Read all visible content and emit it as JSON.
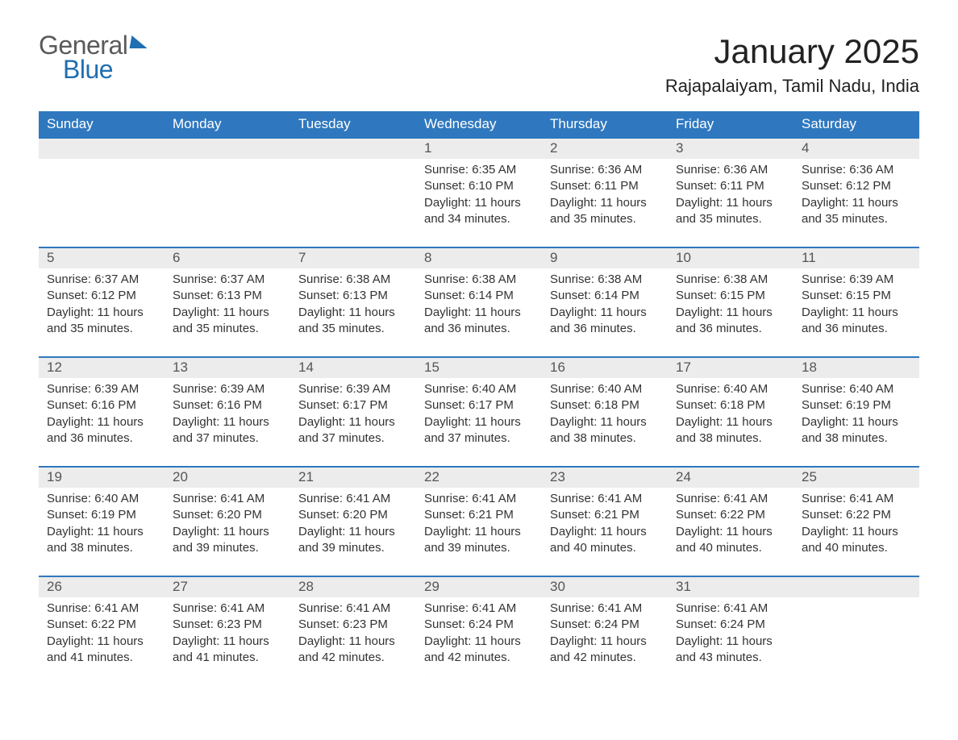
{
  "logo": {
    "line1": "General",
    "line2": "Blue"
  },
  "title": "January 2025",
  "location": "Rajapalaiyam, Tamil Nadu, India",
  "colors": {
    "header_bg": "#2f78bf",
    "header_text": "#ffffff",
    "daynum_bg": "#ececec",
    "daynum_text": "#555555",
    "body_text": "#333333",
    "rule": "#2f78bf",
    "logo_gray": "#5a5a5a",
    "logo_blue": "#1f6fb2",
    "page_bg": "#ffffff"
  },
  "typography": {
    "title_fontsize_pt": 32,
    "location_fontsize_pt": 17,
    "header_fontsize_pt": 13,
    "daynum_fontsize_pt": 13,
    "body_fontsize_pt": 11
  },
  "layout": {
    "columns": 7,
    "rows": 5,
    "start_day_index": 3
  },
  "day_names": [
    "Sunday",
    "Monday",
    "Tuesday",
    "Wednesday",
    "Thursday",
    "Friday",
    "Saturday"
  ],
  "weeks": [
    [
      null,
      null,
      null,
      {
        "n": "1",
        "sunrise": "Sunrise: 6:35 AM",
        "sunset": "Sunset: 6:10 PM",
        "d1": "Daylight: 11 hours",
        "d2": "and 34 minutes."
      },
      {
        "n": "2",
        "sunrise": "Sunrise: 6:36 AM",
        "sunset": "Sunset: 6:11 PM",
        "d1": "Daylight: 11 hours",
        "d2": "and 35 minutes."
      },
      {
        "n": "3",
        "sunrise": "Sunrise: 6:36 AM",
        "sunset": "Sunset: 6:11 PM",
        "d1": "Daylight: 11 hours",
        "d2": "and 35 minutes."
      },
      {
        "n": "4",
        "sunrise": "Sunrise: 6:36 AM",
        "sunset": "Sunset: 6:12 PM",
        "d1": "Daylight: 11 hours",
        "d2": "and 35 minutes."
      }
    ],
    [
      {
        "n": "5",
        "sunrise": "Sunrise: 6:37 AM",
        "sunset": "Sunset: 6:12 PM",
        "d1": "Daylight: 11 hours",
        "d2": "and 35 minutes."
      },
      {
        "n": "6",
        "sunrise": "Sunrise: 6:37 AM",
        "sunset": "Sunset: 6:13 PM",
        "d1": "Daylight: 11 hours",
        "d2": "and 35 minutes."
      },
      {
        "n": "7",
        "sunrise": "Sunrise: 6:38 AM",
        "sunset": "Sunset: 6:13 PM",
        "d1": "Daylight: 11 hours",
        "d2": "and 35 minutes."
      },
      {
        "n": "8",
        "sunrise": "Sunrise: 6:38 AM",
        "sunset": "Sunset: 6:14 PM",
        "d1": "Daylight: 11 hours",
        "d2": "and 36 minutes."
      },
      {
        "n": "9",
        "sunrise": "Sunrise: 6:38 AM",
        "sunset": "Sunset: 6:14 PM",
        "d1": "Daylight: 11 hours",
        "d2": "and 36 minutes."
      },
      {
        "n": "10",
        "sunrise": "Sunrise: 6:38 AM",
        "sunset": "Sunset: 6:15 PM",
        "d1": "Daylight: 11 hours",
        "d2": "and 36 minutes."
      },
      {
        "n": "11",
        "sunrise": "Sunrise: 6:39 AM",
        "sunset": "Sunset: 6:15 PM",
        "d1": "Daylight: 11 hours",
        "d2": "and 36 minutes."
      }
    ],
    [
      {
        "n": "12",
        "sunrise": "Sunrise: 6:39 AM",
        "sunset": "Sunset: 6:16 PM",
        "d1": "Daylight: 11 hours",
        "d2": "and 36 minutes."
      },
      {
        "n": "13",
        "sunrise": "Sunrise: 6:39 AM",
        "sunset": "Sunset: 6:16 PM",
        "d1": "Daylight: 11 hours",
        "d2": "and 37 minutes."
      },
      {
        "n": "14",
        "sunrise": "Sunrise: 6:39 AM",
        "sunset": "Sunset: 6:17 PM",
        "d1": "Daylight: 11 hours",
        "d2": "and 37 minutes."
      },
      {
        "n": "15",
        "sunrise": "Sunrise: 6:40 AM",
        "sunset": "Sunset: 6:17 PM",
        "d1": "Daylight: 11 hours",
        "d2": "and 37 minutes."
      },
      {
        "n": "16",
        "sunrise": "Sunrise: 6:40 AM",
        "sunset": "Sunset: 6:18 PM",
        "d1": "Daylight: 11 hours",
        "d2": "and 38 minutes."
      },
      {
        "n": "17",
        "sunrise": "Sunrise: 6:40 AM",
        "sunset": "Sunset: 6:18 PM",
        "d1": "Daylight: 11 hours",
        "d2": "and 38 minutes."
      },
      {
        "n": "18",
        "sunrise": "Sunrise: 6:40 AM",
        "sunset": "Sunset: 6:19 PM",
        "d1": "Daylight: 11 hours",
        "d2": "and 38 minutes."
      }
    ],
    [
      {
        "n": "19",
        "sunrise": "Sunrise: 6:40 AM",
        "sunset": "Sunset: 6:19 PM",
        "d1": "Daylight: 11 hours",
        "d2": "and 38 minutes."
      },
      {
        "n": "20",
        "sunrise": "Sunrise: 6:41 AM",
        "sunset": "Sunset: 6:20 PM",
        "d1": "Daylight: 11 hours",
        "d2": "and 39 minutes."
      },
      {
        "n": "21",
        "sunrise": "Sunrise: 6:41 AM",
        "sunset": "Sunset: 6:20 PM",
        "d1": "Daylight: 11 hours",
        "d2": "and 39 minutes."
      },
      {
        "n": "22",
        "sunrise": "Sunrise: 6:41 AM",
        "sunset": "Sunset: 6:21 PM",
        "d1": "Daylight: 11 hours",
        "d2": "and 39 minutes."
      },
      {
        "n": "23",
        "sunrise": "Sunrise: 6:41 AM",
        "sunset": "Sunset: 6:21 PM",
        "d1": "Daylight: 11 hours",
        "d2": "and 40 minutes."
      },
      {
        "n": "24",
        "sunrise": "Sunrise: 6:41 AM",
        "sunset": "Sunset: 6:22 PM",
        "d1": "Daylight: 11 hours",
        "d2": "and 40 minutes."
      },
      {
        "n": "25",
        "sunrise": "Sunrise: 6:41 AM",
        "sunset": "Sunset: 6:22 PM",
        "d1": "Daylight: 11 hours",
        "d2": "and 40 minutes."
      }
    ],
    [
      {
        "n": "26",
        "sunrise": "Sunrise: 6:41 AM",
        "sunset": "Sunset: 6:22 PM",
        "d1": "Daylight: 11 hours",
        "d2": "and 41 minutes."
      },
      {
        "n": "27",
        "sunrise": "Sunrise: 6:41 AM",
        "sunset": "Sunset: 6:23 PM",
        "d1": "Daylight: 11 hours",
        "d2": "and 41 minutes."
      },
      {
        "n": "28",
        "sunrise": "Sunrise: 6:41 AM",
        "sunset": "Sunset: 6:23 PM",
        "d1": "Daylight: 11 hours",
        "d2": "and 42 minutes."
      },
      {
        "n": "29",
        "sunrise": "Sunrise: 6:41 AM",
        "sunset": "Sunset: 6:24 PM",
        "d1": "Daylight: 11 hours",
        "d2": "and 42 minutes."
      },
      {
        "n": "30",
        "sunrise": "Sunrise: 6:41 AM",
        "sunset": "Sunset: 6:24 PM",
        "d1": "Daylight: 11 hours",
        "d2": "and 42 minutes."
      },
      {
        "n": "31",
        "sunrise": "Sunrise: 6:41 AM",
        "sunset": "Sunset: 6:24 PM",
        "d1": "Daylight: 11 hours",
        "d2": "and 43 minutes."
      },
      null
    ]
  ]
}
